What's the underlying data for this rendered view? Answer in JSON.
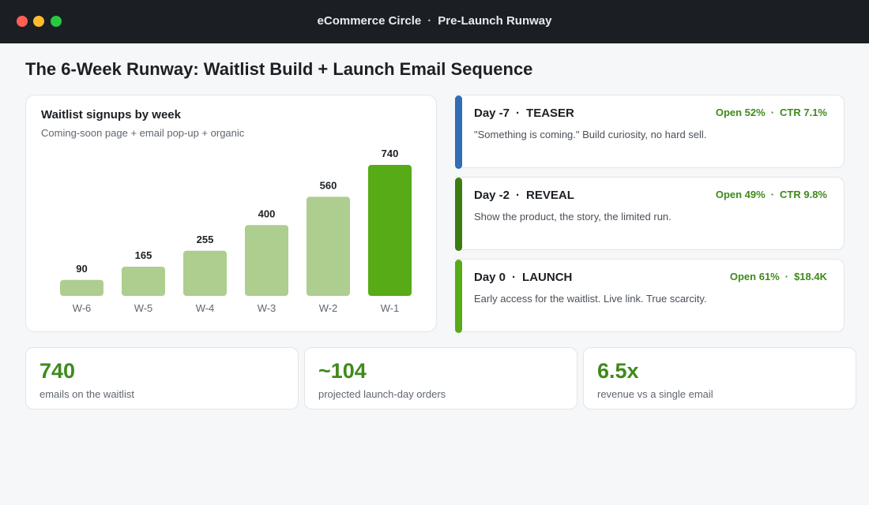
{
  "window": {
    "app_name": "eCommerce Circle",
    "separator": "·",
    "page_name": "Pre-Launch Runway"
  },
  "page_title": "The 6-Week Runway: Waitlist Build + Launch Email Sequence",
  "chart": {
    "title": "Waitlist signups by week",
    "subtitle": "Coming-soon page + email pop-up + organic"
  },
  "chart_data": {
    "type": "bar",
    "title": "Waitlist signups by week",
    "subtitle": "Coming-soon page + email pop-up + organic",
    "categories": [
      "W-6",
      "W-5",
      "W-4",
      "W-3",
      "W-2",
      "W-1"
    ],
    "values": [
      90,
      165,
      255,
      400,
      560,
      740
    ],
    "highlight_index": 5,
    "colors": {
      "bar": "#adce8f",
      "highlight": "#56ab16",
      "label": "#1c2024",
      "tick": "#5f6670"
    },
    "grid": false,
    "ylim": [
      0,
      740
    ]
  },
  "emails": [
    {
      "day": "Day -7",
      "sep": "·",
      "name": "TEASER",
      "metric1": "Open 52%",
      "metric_sep": "·",
      "metric2": "CTR 7.1%",
      "description": "\"Something is coming.\" Build curiosity, no hard sell.",
      "accent": "#2f6db5"
    },
    {
      "day": "Day -2",
      "sep": "·",
      "name": "REVEAL",
      "metric1": "Open 49%",
      "metric_sep": "·",
      "metric2": "CTR 9.8%",
      "description": "Show the product, the story, the limited run.",
      "accent": "#3c7d10"
    },
    {
      "day": "Day 0",
      "sep": "·",
      "name": "LAUNCH",
      "metric1": "Open 61%",
      "metric_sep": "·",
      "metric2": "$18.4K",
      "description": "Early access for the waitlist. Live link. True scarcity.",
      "accent": "#56ab16"
    }
  ],
  "stats": [
    {
      "value": "740",
      "label": "emails on the waitlist"
    },
    {
      "value": "~104",
      "label": "projected launch-day orders"
    },
    {
      "value": "6.5x",
      "label": "revenue vs a single email"
    }
  ],
  "colors": {
    "titlebar": "#1b1f24",
    "accent_green": "#3f8a1c",
    "background": "#f6f7f9"
  }
}
